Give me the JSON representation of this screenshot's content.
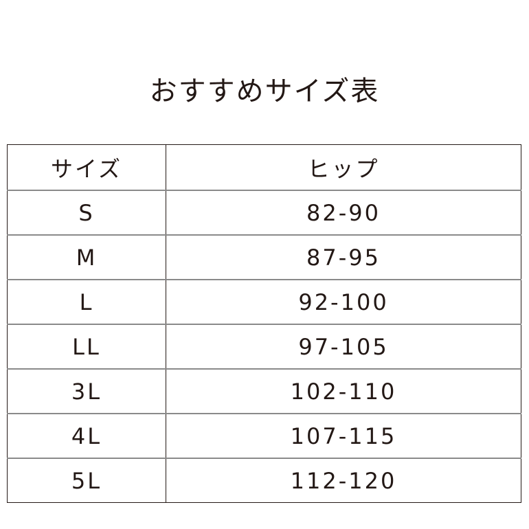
{
  "title": "おすすめサイズ表",
  "table": {
    "headers": [
      "サイズ",
      "ヒップ"
    ],
    "rows": [
      [
        "S",
        "82-90"
      ],
      [
        "M",
        "87-95"
      ],
      [
        "L",
        "92-100"
      ],
      [
        "LL",
        "97-105"
      ],
      [
        "3L",
        "102-110"
      ],
      [
        "4L",
        "107-115"
      ],
      [
        "5L",
        "112-120"
      ]
    ]
  }
}
